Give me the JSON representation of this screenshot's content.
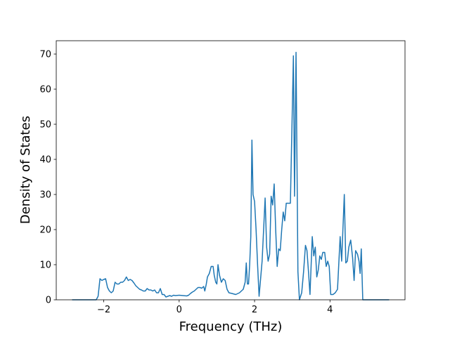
{
  "chart_data": {
    "type": "line",
    "xlabel": "Frequency (THz)",
    "ylabel": "Density of States",
    "x": [
      -2.84,
      -2.2,
      -2.15,
      -2.1,
      -2.05,
      -2.0,
      -1.95,
      -1.9,
      -1.85,
      -1.8,
      -1.75,
      -1.7,
      -1.65,
      -1.6,
      -1.55,
      -1.5,
      -1.45,
      -1.4,
      -1.35,
      -1.3,
      -1.25,
      -1.2,
      -1.15,
      -1.1,
      -1.05,
      -1.0,
      -0.95,
      -0.9,
      -0.85,
      -0.8,
      -0.75,
      -0.7,
      -0.65,
      -0.6,
      -0.55,
      -0.5,
      -0.45,
      -0.4,
      -0.35,
      -0.3,
      -0.25,
      -0.2,
      -0.15,
      -0.1,
      0,
      0.1,
      0.2,
      0.25,
      0.3,
      0.35,
      0.4,
      0.45,
      0.5,
      0.55,
      0.6,
      0.65,
      0.68,
      0.72,
      0.75,
      0.8,
      0.85,
      0.9,
      0.93,
      0.97,
      1.0,
      1.03,
      1.07,
      1.12,
      1.17,
      1.22,
      1.27,
      1.32,
      1.4,
      1.5,
      1.6,
      1.7,
      1.75,
      1.78,
      1.81,
      1.84,
      1.87,
      1.9,
      1.93,
      1.96,
      2.0,
      2.04,
      2.08,
      2.12,
      2.16,
      2.2,
      2.24,
      2.28,
      2.32,
      2.36,
      2.4,
      2.44,
      2.48,
      2.52,
      2.56,
      2.6,
      2.64,
      2.68,
      2.72,
      2.76,
      2.8,
      2.84,
      2.88,
      2.95,
      3.03,
      3.06,
      3.1,
      3.15,
      3.19,
      3.25,
      3.3,
      3.35,
      3.39,
      3.43,
      3.47,
      3.53,
      3.57,
      3.61,
      3.65,
      3.69,
      3.73,
      3.77,
      3.81,
      3.86,
      3.9,
      3.94,
      3.98,
      4.02,
      4.08,
      4.14,
      4.2,
      4.27,
      4.31,
      4.38,
      4.42,
      4.46,
      4.5,
      4.55,
      4.6,
      4.64,
      4.68,
      4.73,
      4.77,
      4.8,
      4.83,
      4.87,
      5.57
    ],
    "values": [
      0,
      0,
      1,
      6,
      5.5,
      5.8,
      6,
      3.5,
      2.5,
      2,
      2.5,
      5,
      4.5,
      4.5,
      5,
      5,
      5.5,
      6.5,
      5.5,
      5.8,
      5.5,
      4.8,
      4,
      3.5,
      3,
      2.8,
      2.5,
      2.5,
      3.2,
      2.8,
      2.8,
      2.5,
      2.8,
      2,
      2,
      3.2,
      1.5,
      1.5,
      0.8,
      1,
      1.2,
      1,
      1.3,
      1.2,
      1.3,
      1.2,
      1.1,
      1.3,
      1.8,
      2.2,
      2.5,
      3,
      3.5,
      3.5,
      3.3,
      3.8,
      2.5,
      4.5,
      6.5,
      7.5,
      9.5,
      9.5,
      7,
      5,
      4.5,
      10,
      7,
      5,
      6,
      5.5,
      3,
      2,
      1.8,
      1.5,
      2,
      3,
      5,
      10.5,
      4.5,
      4.5,
      10,
      18,
      45.5,
      30,
      28,
      20,
      10,
      1,
      6,
      11,
      20,
      29,
      15,
      11,
      13,
      29.5,
      27,
      33,
      20,
      9.5,
      14.5,
      14,
      20,
      25,
      22.5,
      27.5,
      27.5,
      27.5,
      69.5,
      29.5,
      70.5,
      8,
      0,
      2,
      8,
      15.5,
      14,
      8,
      1.5,
      18,
      12.5,
      15,
      6.5,
      8.5,
      12.5,
      11.5,
      13.5,
      13.5,
      9.5,
      11,
      9.5,
      1.5,
      1.5,
      2,
      3,
      18,
      11,
      30,
      10.5,
      11,
      15,
      17,
      12,
      5.5,
      14,
      13,
      11,
      7.5,
      14.5,
      0,
      0
    ],
    "color": "#1f77b4",
    "xlim": [
      -3.26,
      5.99
    ],
    "ylim": [
      0,
      73.8
    ],
    "xticks": [
      {
        "value": -2,
        "label": "−2"
      },
      0,
      2,
      4
    ],
    "yticks": [
      0,
      10,
      20,
      30,
      40,
      50,
      60,
      70
    ]
  }
}
